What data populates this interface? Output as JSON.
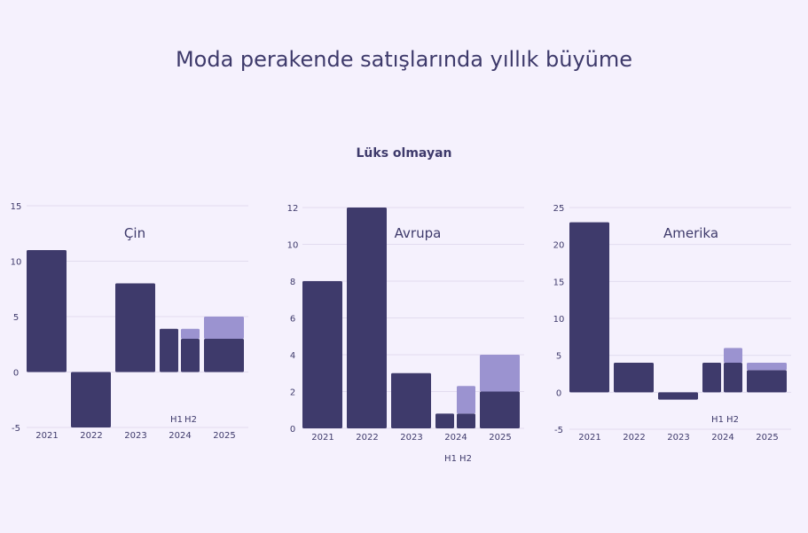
{
  "title": "Moda perakende satışlarında yıllık büyüme",
  "subtitle": "Lüks olmayan",
  "colors": {
    "dark": "#3e3a6b",
    "light": "#9b93d0",
    "grid": "#e2dcef"
  },
  "h_labels": [
    "H1",
    "H2"
  ],
  "chart_data": [
    {
      "type": "bar",
      "title": "Çin",
      "categories": [
        "2021",
        "2022",
        "2023",
        "2024",
        "2025"
      ],
      "ylim": [
        -5,
        15
      ],
      "yticks": [
        -5,
        0,
        5,
        10,
        15
      ],
      "series": [
        {
          "values": [
            11,
            -5,
            8,
            null,
            3
          ]
        },
        {
          "values": [
            null,
            null,
            null,
            null,
            2
          ]
        }
      ],
      "h_split": {
        "category": "2024",
        "H1": 3.9,
        "H2": [
          3,
          0.9
        ]
      }
    },
    {
      "type": "bar",
      "title": "Avrupa",
      "categories": [
        "2021",
        "2022",
        "2023",
        "2024",
        "2025"
      ],
      "ylim": [
        0,
        12
      ],
      "yticks": [
        0,
        2,
        4,
        6,
        8,
        10,
        12
      ],
      "series": [
        {
          "values": [
            8,
            12,
            3,
            null,
            2
          ]
        },
        {
          "values": [
            null,
            null,
            null,
            null,
            2
          ]
        }
      ],
      "h_split": {
        "category": "2024",
        "H1": 0.8,
        "H2": [
          0.8,
          1.5
        ]
      }
    },
    {
      "type": "bar",
      "title": "Amerika",
      "categories": [
        "2021",
        "2022",
        "2023",
        "2024",
        "2025"
      ],
      "ylim": [
        -5,
        25
      ],
      "yticks": [
        -5,
        0,
        5,
        10,
        15,
        20,
        25
      ],
      "series": [
        {
          "values": [
            23,
            4,
            -1,
            null,
            3
          ]
        },
        {
          "values": [
            null,
            null,
            null,
            null,
            1
          ]
        }
      ],
      "h_split": {
        "category": "2024",
        "H1": 4,
        "H2": [
          4,
          2
        ]
      }
    }
  ]
}
